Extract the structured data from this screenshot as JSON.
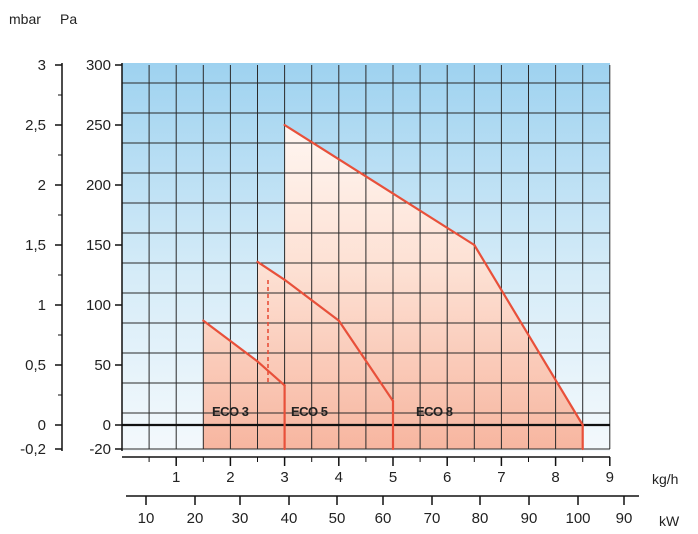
{
  "chart_data": {
    "type": "line",
    "x_primary": {
      "label": "kg/h",
      "ticks": [
        "1",
        "2",
        "3",
        "4",
        "5",
        "6",
        "7",
        "8",
        "9"
      ],
      "range": [
        0,
        9
      ]
    },
    "x_secondary": {
      "label": "kW",
      "ticks": [
        "10",
        "20",
        "30",
        "40",
        "50",
        "60",
        "70",
        "80",
        "90",
        "100",
        "90"
      ]
    },
    "y_left": {
      "label": "mbar",
      "ticks": [
        "3",
        "2,5",
        "2",
        "1,5",
        "1",
        "0,5",
        "0",
        "-0,2"
      ]
    },
    "y_right": {
      "label": "Pa",
      "ticks": [
        "300",
        "250",
        "200",
        "150",
        "100",
        "50",
        "0",
        "-20"
      ],
      "range": [
        -20,
        300
      ]
    },
    "grid": true,
    "series": [
      {
        "name": "ECO 3",
        "color": "#e8503a",
        "points": [
          [
            1.5,
            87
          ],
          [
            2.5,
            53
          ],
          [
            3.0,
            33
          ],
          [
            3.0,
            -20
          ]
        ]
      },
      {
        "name": "ECO 5",
        "color": "#e8503a",
        "points": [
          [
            2.5,
            136
          ],
          [
            3.0,
            121
          ],
          [
            4.0,
            87
          ],
          [
            5.0,
            20
          ],
          [
            5.0,
            -20
          ]
        ]
      },
      {
        "name": "ECO 8",
        "color": "#e8503a",
        "points": [
          [
            3.0,
            250
          ],
          [
            6.5,
            150
          ],
          [
            8.5,
            0
          ],
          [
            8.5,
            -20
          ]
        ]
      }
    ]
  }
}
